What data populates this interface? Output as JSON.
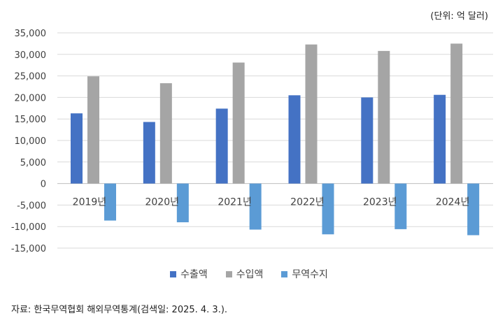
{
  "unit_note": "(단위: 억 달러)",
  "source": "자료: 한국무역협회 해외무역통계(검색일: 2025. 4. 3.).",
  "chart_data": {
    "type": "bar",
    "title": "",
    "xlabel": "",
    "ylabel": "",
    "categories": [
      "2019년",
      "2020년",
      "2021년",
      "2022년",
      "2023년",
      "2024년"
    ],
    "y_ticks": [
      "35,000",
      "30,000",
      "25,000",
      "20,000",
      "15,000",
      "10,000",
      "5,000",
      "0",
      "-5,000",
      "-10,000",
      "-15,000"
    ],
    "ylim": [
      -15000,
      35000
    ],
    "grid": true,
    "legend_position": "bottom",
    "series": [
      {
        "name": "수출액",
        "color": "#4472C4",
        "values": [
          16300,
          14300,
          17400,
          20500,
          20000,
          20600
        ]
      },
      {
        "name": "수입액",
        "color": "#A5A5A5",
        "values": [
          24900,
          23300,
          28100,
          32300,
          30800,
          32500
        ]
      },
      {
        "name": "무역수지",
        "color": "#5B9BD5",
        "values": [
          -8600,
          -9000,
          -10700,
          -11800,
          -10600,
          -12000
        ]
      }
    ]
  }
}
